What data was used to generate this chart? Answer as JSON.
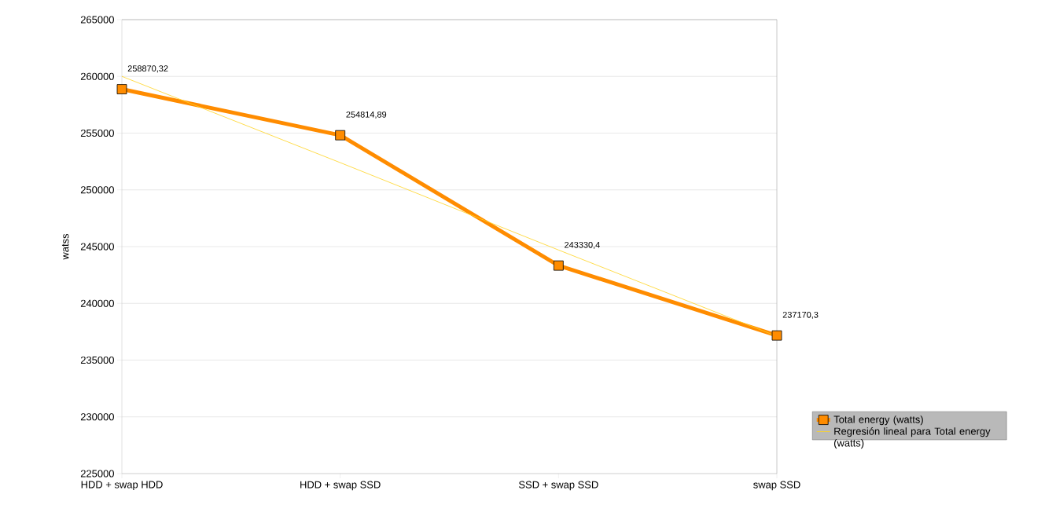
{
  "chart_data": {
    "type": "line",
    "ylabel": "watss",
    "categories": [
      "HDD + swap HDD",
      "HDD + swap SSD",
      "SSD + swap SSD",
      "swap SSD"
    ],
    "series": [
      {
        "name": "Total energy (watts)",
        "color": "#ff8c00",
        "marker": "square",
        "values": [
          258870.32,
          254814.89,
          243330.4,
          237170.3
        ],
        "value_labels": [
          "258870,32",
          "254814,89",
          "243330,4",
          "237170,3"
        ]
      },
      {
        "name": "Regresión lineal para Total energy (watts)",
        "color": "#ffd320",
        "marker": "none",
        "values": [
          260000,
          252400,
          244700,
          237100
        ]
      }
    ],
    "ylim": [
      225000,
      265000
    ],
    "yticks": [
      225000,
      230000,
      235000,
      240000,
      245000,
      250000,
      255000,
      260000,
      265000
    ],
    "grid": "y",
    "legend": "right"
  }
}
